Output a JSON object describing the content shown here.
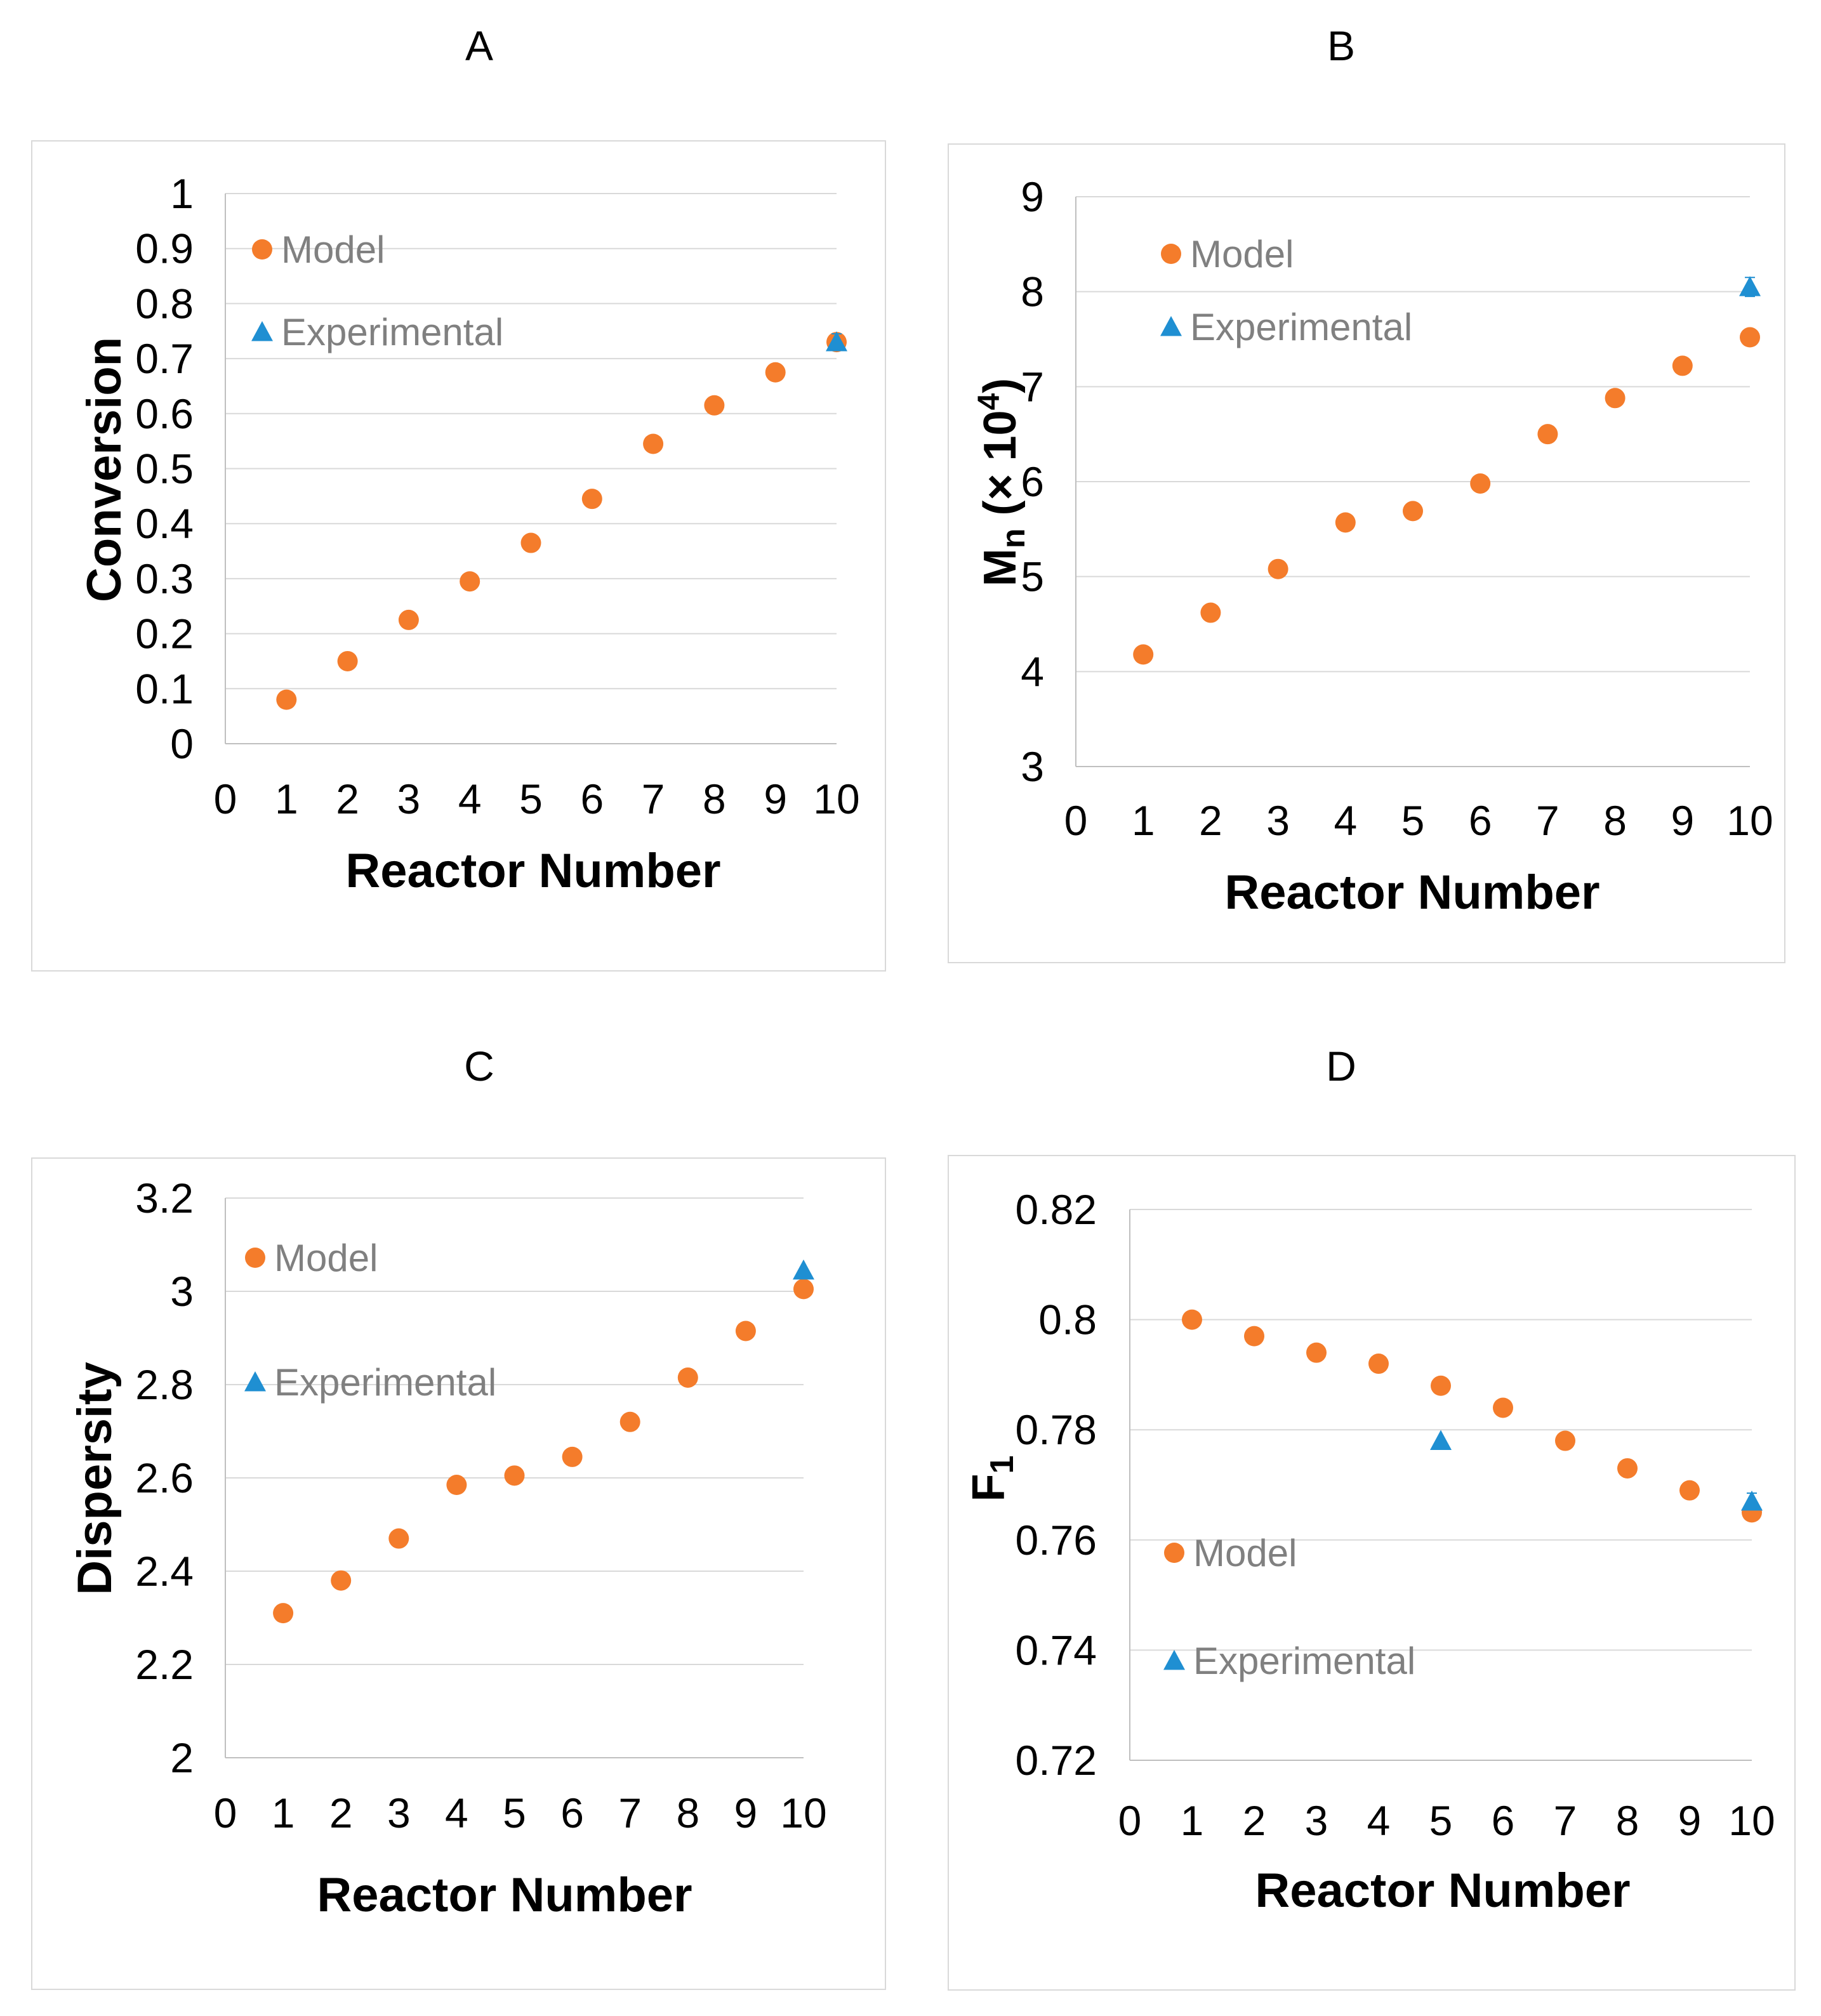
{
  "colors": {
    "model": "#F47C2B",
    "experimental": "#1F8FD2",
    "grid": "#D9D9D9",
    "legend_text": "#808080"
  },
  "legend": {
    "model": "Model",
    "experimental": "Experimental"
  },
  "chart_data": [
    {
      "panel": "A",
      "type": "scatter",
      "title": "A",
      "xlabel": "Reactor Number",
      "ylabel": "Conversion",
      "xlim": [
        0,
        10
      ],
      "ylim": [
        0,
        1
      ],
      "xticks": [
        "0",
        "1",
        "2",
        "3",
        "4",
        "5",
        "6",
        "7",
        "8",
        "9",
        "10"
      ],
      "yticks": [
        "0",
        "0.1",
        "0.2",
        "0.3",
        "0.4",
        "0.5",
        "0.6",
        "0.7",
        "0.8",
        "0.9",
        "1"
      ],
      "legend_position": "top-left",
      "series": [
        {
          "name": "Model",
          "marker": "circle",
          "x": [
            1,
            2,
            3,
            4,
            5,
            6,
            7,
            8,
            9,
            10
          ],
          "y": [
            0.08,
            0.15,
            0.225,
            0.295,
            0.365,
            0.445,
            0.545,
            0.615,
            0.675,
            0.73
          ]
        },
        {
          "name": "Experimental",
          "marker": "triangle",
          "x": [
            10
          ],
          "y": [
            0.73
          ],
          "error": [
            0.015
          ]
        }
      ]
    },
    {
      "panel": "B",
      "type": "scatter",
      "title": "B",
      "xlabel": "Reactor Number",
      "ylabel": "Mn (× 10⁴)",
      "ylabel_parts": {
        "main": "M",
        "sub": "n",
        "rest": " (× 10",
        "sup": "4",
        "close": ")"
      },
      "xlim": [
        0,
        10
      ],
      "ylim": [
        3,
        9
      ],
      "xticks": [
        "0",
        "1",
        "2",
        "3",
        "4",
        "5",
        "6",
        "7",
        "8",
        "9",
        "10"
      ],
      "yticks": [
        "3",
        "4",
        "5",
        "6",
        "7",
        "8",
        "9"
      ],
      "legend_position": "top-left",
      "series": [
        {
          "name": "Model",
          "marker": "circle",
          "x": [
            1,
            2,
            3,
            4,
            5,
            6,
            7,
            8,
            9,
            10
          ],
          "y": [
            4.18,
            4.62,
            5.08,
            5.57,
            5.69,
            5.98,
            6.5,
            6.88,
            7.22,
            7.52
          ]
        },
        {
          "name": "Experimental",
          "marker": "triangle",
          "x": [
            10
          ],
          "y": [
            8.05
          ],
          "error": [
            0.1
          ]
        }
      ]
    },
    {
      "panel": "C",
      "type": "scatter",
      "title": "C",
      "xlabel": "Reactor Number",
      "ylabel": "Dispersity",
      "xlim": [
        0,
        10
      ],
      "ylim": [
        2,
        3.2
      ],
      "xticks": [
        "0",
        "1",
        "2",
        "3",
        "4",
        "5",
        "6",
        "7",
        "8",
        "9",
        "10"
      ],
      "yticks": [
        "2",
        "2.2",
        "2.4",
        "2.6",
        "2.8",
        "3",
        "3.2"
      ],
      "legend_position": "top-left",
      "series": [
        {
          "name": "Model",
          "marker": "circle",
          "x": [
            1,
            2,
            3,
            4,
            5,
            6,
            7,
            8,
            9,
            10
          ],
          "y": [
            2.31,
            2.38,
            2.47,
            2.585,
            2.605,
            2.645,
            2.72,
            2.815,
            2.915,
            3.005
          ]
        },
        {
          "name": "Experimental",
          "marker": "triangle",
          "x": [
            10
          ],
          "y": [
            3.045
          ],
          "error": [
            0
          ]
        }
      ]
    },
    {
      "panel": "D",
      "type": "scatter",
      "title": "D",
      "xlabel": "Reactor Number",
      "ylabel": "F1",
      "ylabel_parts": {
        "main": "F",
        "sub": "1"
      },
      "xlim": [
        0,
        10
      ],
      "ylim": [
        0.72,
        0.82
      ],
      "xticks": [
        "0",
        "1",
        "2",
        "3",
        "4",
        "5",
        "6",
        "7",
        "8",
        "9",
        "10"
      ],
      "yticks": [
        "0.72",
        "0.74",
        "0.76",
        "0.78",
        "0.8",
        "0.82"
      ],
      "legend_position": "bottom-left",
      "series": [
        {
          "name": "Model",
          "marker": "circle",
          "x": [
            1,
            2,
            3,
            4,
            5,
            6,
            7,
            8,
            9,
            10
          ],
          "y": [
            0.8,
            0.797,
            0.794,
            0.792,
            0.788,
            0.784,
            0.778,
            0.773,
            0.769,
            0.765
          ]
        },
        {
          "name": "Experimental",
          "marker": "triangle",
          "x": [
            5,
            10
          ],
          "y": [
            0.778,
            0.767
          ],
          "error": [
            0,
            0.0015
          ]
        }
      ]
    }
  ]
}
